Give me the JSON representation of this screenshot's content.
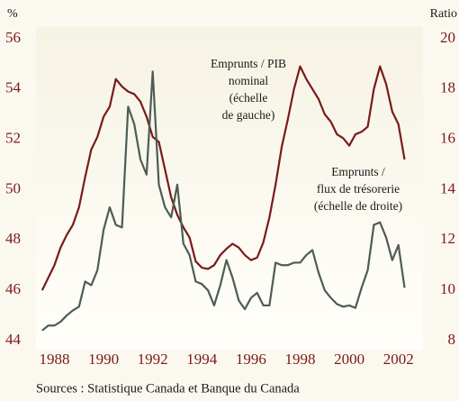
{
  "chart_data": {
    "type": "line",
    "y_label": "%",
    "y2_label": "Ratio",
    "x": [
      1987.5,
      1987.75,
      1988,
      1988.25,
      1988.5,
      1988.75,
      1989,
      1989.25,
      1989.5,
      1989.75,
      1990,
      1990.25,
      1990.5,
      1990.75,
      1991,
      1991.25,
      1991.5,
      1991.75,
      1992,
      1992.25,
      1992.5,
      1992.75,
      1993,
      1993.25,
      1993.5,
      1993.75,
      1994,
      1994.25,
      1994.5,
      1994.75,
      1995,
      1995.25,
      1995.5,
      1995.75,
      1996,
      1996.25,
      1996.5,
      1996.75,
      1997,
      1997.25,
      1997.5,
      1997.75,
      1998,
      1998.25,
      1998.5,
      1998.75,
      1999,
      1999.25,
      1999.5,
      1999.75,
      2000,
      2000.25,
      2000.5,
      2000.75,
      2001,
      2001.25,
      2001.5,
      2001.75,
      2002,
      2002.25
    ],
    "series": [
      {
        "name": "Emprunts / PIB nominal",
        "color": "#7a1a1a",
        "axis": "y",
        "values": [
          46.0,
          46.5,
          47.0,
          47.7,
          48.2,
          48.6,
          49.3,
          50.5,
          51.6,
          52.1,
          52.9,
          53.3,
          54.4,
          54.1,
          53.9,
          53.8,
          53.5,
          52.9,
          52.1,
          51.9,
          50.8,
          49.7,
          49.0,
          48.5,
          48.1,
          47.15,
          46.9,
          46.85,
          47.0,
          47.4,
          47.65,
          47.85,
          47.7,
          47.4,
          47.2,
          47.3,
          47.9,
          48.9,
          50.2,
          51.7,
          52.8,
          54.0,
          54.9,
          54.4,
          54.0,
          53.6,
          53.0,
          52.7,
          52.2,
          52.05,
          51.75,
          52.2,
          52.3,
          52.5,
          54.0,
          54.9,
          54.2,
          53.1,
          52.6,
          51.2
        ]
      },
      {
        "name": "Emprunts / flux de trésorerie",
        "color": "#4d5c57",
        "axis": "y2",
        "values": [
          8.4,
          8.6,
          8.6,
          8.75,
          9.0,
          9.2,
          9.35,
          10.35,
          10.2,
          10.8,
          12.4,
          13.3,
          12.6,
          12.5,
          17.3,
          16.6,
          15.2,
          14.6,
          18.7,
          14.2,
          13.3,
          12.9,
          14.2,
          11.85,
          11.4,
          10.35,
          10.25,
          10.0,
          9.4,
          10.2,
          11.2,
          10.5,
          9.6,
          9.25,
          9.7,
          9.9,
          9.4,
          9.4,
          11.1,
          11.0,
          11.0,
          11.1,
          11.1,
          11.4,
          11.6,
          10.7,
          10.0,
          9.7,
          9.45,
          9.35,
          9.4,
          9.3,
          10.1,
          10.8,
          12.6,
          12.7,
          12.1,
          11.2,
          11.8,
          10.1
        ]
      }
    ],
    "xlim": [
      1987.25,
      2003
    ],
    "xticks": [
      1988,
      1990,
      1992,
      1994,
      1996,
      1998,
      2000,
      2002
    ],
    "ylim": [
      44,
      56
    ],
    "yticks": [
      44,
      46,
      48,
      50,
      52,
      54,
      56
    ],
    "y2lim": [
      8,
      20
    ],
    "y2ticks": [
      8,
      10,
      12,
      14,
      16,
      18,
      20
    ],
    "annotations": [
      {
        "lines": [
          "Emprunts / PIB",
          "nominal",
          "(échelle",
          "de gauche)"
        ]
      },
      {
        "lines": [
          "Emprunts /",
          "flux de trésorerie",
          "(échelle de droite)"
        ]
      }
    ],
    "source": "Sources :  Statistique Canada et Banque du Canada"
  }
}
